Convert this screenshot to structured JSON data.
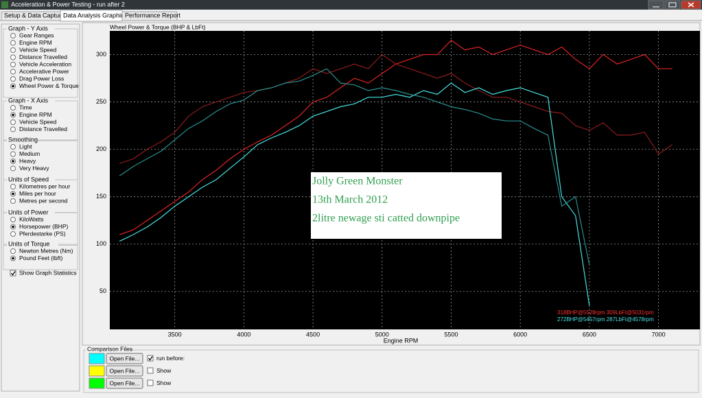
{
  "window": {
    "title": "Acceleration & Power Testing - run after 2"
  },
  "tabs": [
    {
      "label": "Setup & Data Capture",
      "active": false
    },
    {
      "label": "Data Analysis Graphing",
      "active": true
    },
    {
      "label": "Performance Report",
      "active": false
    }
  ],
  "left_panel": {
    "groups": [
      {
        "title": "Graph - Y Axis",
        "options": [
          {
            "label": "Gear Ranges",
            "selected": false
          },
          {
            "label": "Engine RPM",
            "selected": false
          },
          {
            "label": "Vehicle Speed",
            "selected": false
          },
          {
            "label": "Distance Travelled",
            "selected": false
          },
          {
            "label": "Vehicle Acceleration",
            "selected": false
          },
          {
            "label": "Accelerative Power",
            "selected": false
          },
          {
            "label": "Drag Power Loss",
            "selected": false
          },
          {
            "label": "Wheel Power & Torque",
            "selected": true
          }
        ]
      },
      {
        "title": "Graph - X Axis",
        "options": [
          {
            "label": "Time",
            "selected": false
          },
          {
            "label": "Engine RPM",
            "selected": true
          },
          {
            "label": "Vehicle Speed",
            "selected": false
          },
          {
            "label": "Distance Travelled",
            "selected": false
          }
        ]
      },
      {
        "title": "Smoothing",
        "options": [
          {
            "label": "Light",
            "selected": false
          },
          {
            "label": "Medium",
            "selected": false
          },
          {
            "label": "Heavy",
            "selected": true
          },
          {
            "label": "Very Heavy",
            "selected": false
          }
        ]
      },
      {
        "title": "Units of Speed",
        "options": [
          {
            "label": "Kilometres per hour",
            "selected": false
          },
          {
            "label": "Miles per hour",
            "selected": true
          },
          {
            "label": "Metres per second",
            "selected": false
          }
        ]
      },
      {
        "title": "Units of Power",
        "options": [
          {
            "label": "KiloWatts",
            "selected": false
          },
          {
            "label": "Horsepower (BHP)",
            "selected": true
          },
          {
            "label": "Pferdestarke (PS)",
            "selected": false
          }
        ]
      },
      {
        "title": "Units of Torque",
        "options": [
          {
            "label": "Newton Metres (Nm)",
            "selected": false
          },
          {
            "label": "Pound Feet (lbft)",
            "selected": true
          }
        ]
      }
    ],
    "show_graph_statistics": {
      "label": "Show Graph Statistics",
      "checked": true
    }
  },
  "chart_data": {
    "type": "line",
    "title": "Wheel Power & Torque (BHP & LbFt)",
    "x_label": "Engine RPM",
    "x": [
      3100,
      3200,
      3300,
      3400,
      3500,
      3600,
      3700,
      3800,
      3900,
      4000,
      4100,
      4200,
      4300,
      4400,
      4500,
      4600,
      4700,
      4800,
      4900,
      5000,
      5100,
      5200,
      5300,
      5400,
      5500,
      5600,
      5700,
      5800,
      5900,
      6000,
      6100,
      6200,
      6300,
      6400,
      6500,
      6600,
      6700,
      6800,
      6900,
      7000,
      7100
    ],
    "xlim": [
      3030,
      7300
    ],
    "xticks": [
      3500,
      4000,
      4500,
      5000,
      5500,
      6000,
      6500,
      7000
    ],
    "ylim": [
      10,
      325
    ],
    "yticks": [
      50,
      100,
      150,
      200,
      250,
      300
    ],
    "grid": true,
    "background": "#000000",
    "series": [
      {
        "color": "#e02424",
        "values": [
          110,
          115,
          125,
          135,
          145,
          155,
          168,
          178,
          190,
          200,
          208,
          215,
          225,
          235,
          250,
          255,
          265,
          275,
          270,
          280,
          290,
          295,
          300,
          300,
          315,
          305,
          308,
          300,
          305,
          310,
          305,
          300,
          308,
          295,
          285,
          300,
          290,
          295,
          300,
          285,
          285
        ]
      },
      {
        "color": "#8e1c1c",
        "values": [
          185,
          190,
          200,
          208,
          218,
          235,
          245,
          250,
          255,
          260,
          262,
          265,
          270,
          275,
          285,
          280,
          285,
          290,
          285,
          300,
          290,
          285,
          280,
          275,
          280,
          270,
          262,
          255,
          255,
          250,
          245,
          240,
          238,
          225,
          220,
          228,
          215,
          215,
          218,
          195,
          205
        ]
      },
      {
        "color": "#48e4e4",
        "values": [
          103,
          110,
          118,
          128,
          140,
          150,
          160,
          168,
          180,
          192,
          205,
          212,
          218,
          225,
          235,
          240,
          245,
          248,
          255,
          255,
          258,
          255,
          262,
          258,
          270,
          260,
          265,
          258,
          262,
          265,
          260,
          255,
          150,
          130,
          35,
          null,
          null,
          null,
          null,
          null,
          null
        ]
      },
      {
        "color": "#2a9090",
        "values": [
          172,
          182,
          190,
          198,
          210,
          222,
          230,
          240,
          248,
          252,
          262,
          265,
          270,
          272,
          278,
          285,
          270,
          268,
          262,
          265,
          262,
          258,
          255,
          250,
          245,
          242,
          238,
          232,
          230,
          230,
          222,
          215,
          140,
          150,
          78,
          null,
          null,
          null,
          null,
          null,
          null
        ]
      }
    ],
    "annotation_box": {
      "lines": [
        "Jolly Green Monster",
        "13th March 2012",
        "2litre newage sti catted downpipe"
      ]
    },
    "statistics": [
      {
        "text": "318BHP@5528rpm 309LbFt@5031rpm",
        "color": "#ff3030"
      },
      {
        "text": "272BHP@5457rpm 287LbFt@4578rpm",
        "color": "#48e4e4"
      }
    ]
  },
  "comparison_files": {
    "title": "Comparison Files",
    "rows": [
      {
        "color": "#00ffff",
        "button": "Open File...",
        "checked": true,
        "label": "run before:"
      },
      {
        "color": "#ffff00",
        "button": "Open File...",
        "checked": false,
        "label": "Show"
      },
      {
        "color": "#00ff00",
        "button": "Open File...",
        "checked": false,
        "label": "Show"
      }
    ]
  }
}
